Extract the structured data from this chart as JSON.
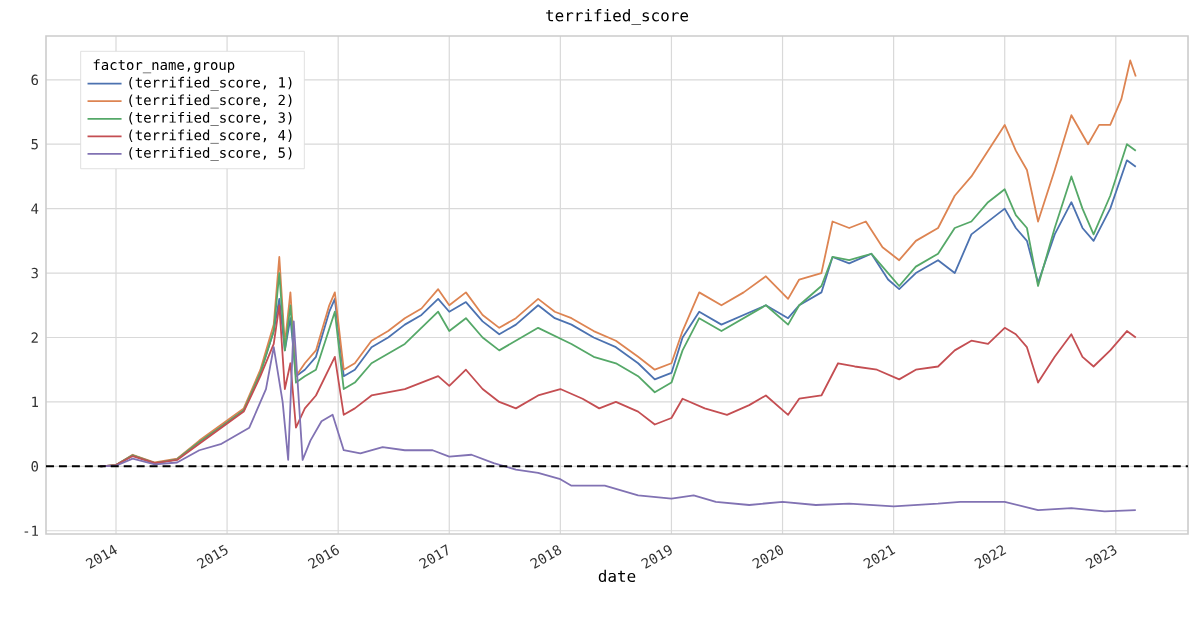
{
  "chart_data": {
    "type": "line",
    "title": "terrified_score",
    "xlabel": "date",
    "legend_title": "factor_name,group",
    "xlim": [
      2013.37,
      2023.65
    ],
    "xticks": [
      2014,
      2015,
      2016,
      2017,
      2018,
      2019,
      2020,
      2021,
      2022,
      2023
    ],
    "ylim": [
      -1.05,
      6.68
    ],
    "yticks": [
      -1,
      0,
      1,
      2,
      3,
      4,
      5,
      6
    ],
    "grid": true,
    "legend": "top left",
    "marker": "none",
    "line_style": "solid",
    "ref_lines": [
      {
        "axis": "y",
        "value": 0,
        "color": "#000000",
        "line_style": "dashed"
      }
    ],
    "series": [
      {
        "name": "(terrified_score, 1)",
        "color": "#4c72b0",
        "x": [
          2013.86,
          2014.0,
          2014.15,
          2014.35,
          2014.55,
          2014.75,
          2014.95,
          2015.15,
          2015.3,
          2015.42,
          2015.47,
          2015.52,
          2015.57,
          2015.62,
          2015.7,
          2015.8,
          2015.92,
          2015.97,
          2016.05,
          2016.15,
          2016.3,
          2016.45,
          2016.6,
          2016.75,
          2016.9,
          2017.0,
          2017.15,
          2017.3,
          2017.45,
          2017.6,
          2017.8,
          2017.95,
          2018.1,
          2018.3,
          2018.5,
          2018.7,
          2018.85,
          2019.0,
          2019.1,
          2019.25,
          2019.45,
          2019.65,
          2019.85,
          2020.05,
          2020.15,
          2020.35,
          2020.45,
          2020.6,
          2020.8,
          2020.95,
          2021.05,
          2021.2,
          2021.4,
          2021.55,
          2021.7,
          2021.85,
          2022.0,
          2022.1,
          2022.2,
          2022.3,
          2022.45,
          2022.6,
          2022.7,
          2022.8,
          2022.95,
          2023.1,
          2023.18
        ],
        "values": [
          0,
          0.02,
          0.17,
          0.05,
          0.11,
          0.38,
          0.62,
          0.87,
          1.45,
          2.1,
          2.6,
          1.8,
          2.3,
          1.4,
          1.5,
          1.7,
          2.4,
          2.6,
          1.4,
          1.5,
          1.85,
          2.0,
          2.2,
          2.35,
          2.6,
          2.4,
          2.55,
          2.25,
          2.05,
          2.2,
          2.5,
          2.3,
          2.2,
          2.0,
          1.85,
          1.6,
          1.35,
          1.45,
          2.0,
          2.4,
          2.2,
          2.35,
          2.5,
          2.3,
          2.5,
          2.7,
          3.25,
          3.15,
          3.3,
          2.9,
          2.75,
          3.0,
          3.2,
          3.0,
          3.6,
          3.8,
          4.0,
          3.7,
          3.5,
          2.85,
          3.6,
          4.1,
          3.7,
          3.5,
          4.0,
          4.75,
          4.65
        ]
      },
      {
        "name": "(terrified_score, 2)",
        "color": "#dd8452",
        "x": [
          2013.86,
          2014.0,
          2014.15,
          2014.35,
          2014.55,
          2014.75,
          2014.95,
          2015.15,
          2015.3,
          2015.42,
          2015.47,
          2015.52,
          2015.57,
          2015.62,
          2015.7,
          2015.8,
          2015.92,
          2015.97,
          2016.05,
          2016.15,
          2016.3,
          2016.45,
          2016.6,
          2016.75,
          2016.9,
          2017.0,
          2017.15,
          2017.3,
          2017.45,
          2017.6,
          2017.8,
          2017.95,
          2018.1,
          2018.3,
          2018.5,
          2018.7,
          2018.85,
          2019.0,
          2019.1,
          2019.25,
          2019.45,
          2019.65,
          2019.85,
          2020.05,
          2020.15,
          2020.35,
          2020.45,
          2020.6,
          2020.75,
          2020.9,
          2021.05,
          2021.2,
          2021.4,
          2021.55,
          2021.7,
          2021.85,
          2022.0,
          2022.1,
          2022.2,
          2022.3,
          2022.45,
          2022.6,
          2022.75,
          2022.85,
          2022.95,
          2023.05,
          2023.13,
          2023.18
        ],
        "values": [
          0,
          0.02,
          0.18,
          0.06,
          0.12,
          0.4,
          0.65,
          0.9,
          1.5,
          2.2,
          3.25,
          1.9,
          2.7,
          1.4,
          1.6,
          1.8,
          2.5,
          2.7,
          1.5,
          1.6,
          1.95,
          2.1,
          2.3,
          2.45,
          2.75,
          2.5,
          2.7,
          2.35,
          2.15,
          2.3,
          2.6,
          2.4,
          2.3,
          2.1,
          1.95,
          1.7,
          1.5,
          1.6,
          2.1,
          2.7,
          2.5,
          2.7,
          2.95,
          2.6,
          2.9,
          3.0,
          3.8,
          3.7,
          3.8,
          3.4,
          3.2,
          3.5,
          3.7,
          4.2,
          4.5,
          4.9,
          5.3,
          4.9,
          4.6,
          3.8,
          4.6,
          5.45,
          5.0,
          5.3,
          5.3,
          5.7,
          6.3,
          6.05
        ]
      },
      {
        "name": "(terrified_score, 3)",
        "color": "#55a868",
        "x": [
          2013.86,
          2014.0,
          2014.15,
          2014.35,
          2014.55,
          2014.75,
          2014.95,
          2015.15,
          2015.3,
          2015.42,
          2015.47,
          2015.52,
          2015.57,
          2015.62,
          2015.7,
          2015.8,
          2015.97,
          2016.05,
          2016.15,
          2016.3,
          2016.6,
          2016.9,
          2017.0,
          2017.15,
          2017.3,
          2017.45,
          2017.8,
          2018.1,
          2018.3,
          2018.5,
          2018.7,
          2018.85,
          2019.0,
          2019.1,
          2019.25,
          2019.45,
          2019.65,
          2019.85,
          2020.05,
          2020.15,
          2020.35,
          2020.45,
          2020.6,
          2020.8,
          2020.95,
          2021.05,
          2021.2,
          2021.4,
          2021.55,
          2021.7,
          2021.85,
          2022.0,
          2022.1,
          2022.2,
          2022.3,
          2022.45,
          2022.6,
          2022.7,
          2022.8,
          2022.95,
          2023.1,
          2023.18
        ],
        "values": [
          0,
          0.02,
          0.17,
          0.05,
          0.11,
          0.38,
          0.62,
          0.87,
          1.45,
          2.1,
          3.0,
          1.8,
          2.5,
          1.3,
          1.4,
          1.5,
          2.4,
          1.2,
          1.3,
          1.6,
          1.9,
          2.4,
          2.1,
          2.3,
          2.0,
          1.8,
          2.15,
          1.9,
          1.7,
          1.6,
          1.4,
          1.15,
          1.3,
          1.8,
          2.3,
          2.1,
          2.3,
          2.5,
          2.2,
          2.5,
          2.8,
          3.25,
          3.2,
          3.3,
          3.0,
          2.8,
          3.1,
          3.3,
          3.7,
          3.8,
          4.1,
          4.3,
          3.9,
          3.7,
          2.8,
          3.7,
          4.5,
          4.0,
          3.6,
          4.2,
          5.0,
          4.9
        ]
      },
      {
        "name": "(terrified_score, 4)",
        "color": "#c44e52",
        "x": [
          2013.86,
          2014.0,
          2014.15,
          2014.35,
          2014.55,
          2014.75,
          2014.95,
          2015.15,
          2015.3,
          2015.42,
          2015.47,
          2015.52,
          2015.57,
          2015.62,
          2015.7,
          2015.8,
          2015.97,
          2016.05,
          2016.15,
          2016.3,
          2016.6,
          2016.9,
          2017.0,
          2017.15,
          2017.3,
          2017.45,
          2017.6,
          2017.8,
          2018.0,
          2018.2,
          2018.35,
          2018.5,
          2018.7,
          2018.85,
          2019.0,
          2019.1,
          2019.3,
          2019.5,
          2019.7,
          2019.85,
          2020.05,
          2020.15,
          2020.35,
          2020.5,
          2020.65,
          2020.85,
          2021.05,
          2021.2,
          2021.4,
          2021.55,
          2021.7,
          2021.85,
          2022.0,
          2022.1,
          2022.2,
          2022.3,
          2022.45,
          2022.6,
          2022.7,
          2022.8,
          2022.95,
          2023.1,
          2023.18
        ],
        "values": [
          0,
          0.02,
          0.16,
          0.05,
          0.1,
          0.35,
          0.6,
          0.85,
          1.4,
          1.9,
          2.5,
          1.2,
          1.6,
          0.6,
          0.9,
          1.1,
          1.7,
          0.8,
          0.9,
          1.1,
          1.2,
          1.4,
          1.25,
          1.5,
          1.2,
          1.0,
          0.9,
          1.1,
          1.2,
          1.05,
          0.9,
          1.0,
          0.85,
          0.65,
          0.75,
          1.05,
          0.9,
          0.8,
          0.95,
          1.1,
          0.8,
          1.05,
          1.1,
          1.6,
          1.55,
          1.5,
          1.35,
          1.5,
          1.55,
          1.8,
          1.95,
          1.9,
          2.15,
          2.05,
          1.85,
          1.3,
          1.7,
          2.05,
          1.7,
          1.55,
          1.8,
          2.1,
          2.0
        ]
      },
      {
        "name": "(terrified_score, 5)",
        "color": "#8172b3",
        "x": [
          2013.86,
          2014.0,
          2014.15,
          2014.35,
          2014.55,
          2014.75,
          2014.95,
          2015.2,
          2015.35,
          2015.42,
          2015.5,
          2015.55,
          2015.6,
          2015.68,
          2015.75,
          2015.85,
          2015.95,
          2016.05,
          2016.2,
          2016.4,
          2016.6,
          2016.85,
          2017.0,
          2017.2,
          2017.4,
          2017.6,
          2017.8,
          2018.0,
          2018.1,
          2018.4,
          2018.7,
          2019.0,
          2019.2,
          2019.4,
          2019.7,
          2020.0,
          2020.3,
          2020.6,
          2021.0,
          2021.4,
          2021.6,
          2022.0,
          2022.3,
          2022.6,
          2022.9,
          2023.18
        ],
        "values": [
          0,
          0.01,
          0.12,
          0.03,
          0.06,
          0.25,
          0.35,
          0.6,
          1.2,
          1.85,
          1.0,
          0.1,
          2.25,
          0.1,
          0.4,
          0.7,
          0.8,
          0.25,
          0.2,
          0.3,
          0.25,
          0.25,
          0.15,
          0.18,
          0.05,
          -0.05,
          -0.1,
          -0.2,
          -0.3,
          -0.3,
          -0.45,
          -0.5,
          -0.45,
          -0.55,
          -0.6,
          -0.55,
          -0.6,
          -0.58,
          -0.62,
          -0.58,
          -0.55,
          -0.55,
          -0.68,
          -0.65,
          -0.7,
          -0.68
        ]
      }
    ]
  }
}
